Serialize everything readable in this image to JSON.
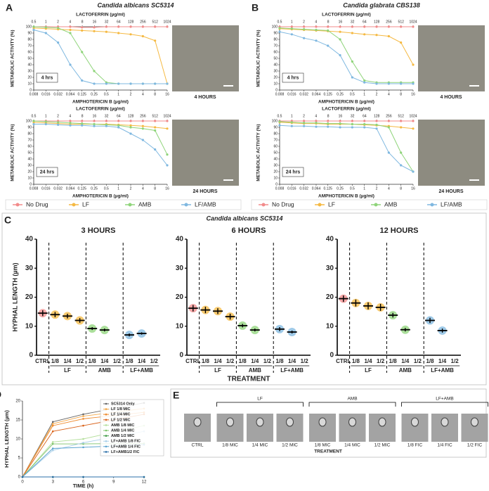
{
  "chart_data": [
    {
      "type": "line",
      "panel": "A",
      "title": "Candida albicans SC5314",
      "x2label": "LACTOFERRIN (µg/ml)",
      "xlabel": "AMPHOTERICIN B (µg/ml)",
      "ylabel": "METABOLIC ACTIVITY (%)",
      "badge": "4 hrs",
      "image_caption": "4 HOURS",
      "xscale": "log",
      "x": [
        0.008,
        0.016,
        0.032,
        0.064,
        0.125,
        0.25,
        0.5,
        1,
        2,
        4,
        8,
        16
      ],
      "xlim": [
        0.008,
        16
      ],
      "xticks": [
        0.008,
        0.016,
        0.032,
        0.064,
        0.125,
        0.25,
        0.5,
        1,
        2,
        4,
        8,
        16
      ],
      "x2lim": [
        0.5,
        1024
      ],
      "x2ticks": [
        0.5,
        1,
        2,
        4,
        8,
        16,
        32,
        64,
        128,
        256,
        512,
        1024
      ],
      "ylim": [
        0,
        100
      ],
      "yticks": [
        0,
        10,
        20,
        30,
        40,
        50,
        60,
        70,
        80,
        90,
        100
      ],
      "series": [
        {
          "color": "#f28b8b",
          "values": [
            100,
            100,
            100,
            100,
            99,
            99,
            100,
            100,
            100,
            100,
            100,
            100
          ]
        },
        {
          "color": "#f5b942",
          "values": [
            98,
            97,
            96,
            95,
            94,
            93,
            92,
            90,
            88,
            85,
            78,
            10
          ]
        },
        {
          "color": "#8fd47a",
          "values": [
            100,
            99,
            98,
            90,
            60,
            30,
            12,
            10,
            10,
            10,
            10,
            10
          ]
        },
        {
          "color": "#7fb8e0",
          "values": [
            95,
            90,
            75,
            40,
            15,
            10,
            10,
            10,
            10,
            10,
            10,
            10
          ]
        }
      ]
    },
    {
      "type": "line",
      "x2label": "LACTOFERRIN (µg/ml)",
      "xlabel": "AMPHOTERICIN B (µg/ml)",
      "ylabel": "METABOLIC ACTIVITY (%)",
      "badge": "24 hrs",
      "image_caption": "24 HOURS",
      "xscale": "log",
      "x": [
        0.008,
        0.016,
        0.032,
        0.064,
        0.125,
        0.25,
        0.5,
        1,
        2,
        4,
        8,
        16
      ],
      "xlim": [
        0.008,
        16
      ],
      "xticks": [
        0.008,
        0.016,
        0.032,
        0.064,
        0.125,
        0.25,
        0.5,
        1,
        2,
        4,
        8,
        16
      ],
      "x2lim": [
        0.5,
        1024
      ],
      "x2ticks": [
        0.5,
        1,
        2,
        4,
        8,
        16,
        32,
        64,
        128,
        256,
        512,
        1024
      ],
      "ylim": [
        0,
        100
      ],
      "yticks": [
        0,
        10,
        20,
        30,
        40,
        50,
        60,
        70,
        80,
        90,
        100
      ],
      "legend": "bottom",
      "series": [
        {
          "name": "No Drug",
          "color": "#f28b8b",
          "values": [
            100,
            100,
            100,
            100,
            100,
            100,
            100,
            100,
            100,
            100,
            100,
            100
          ]
        },
        {
          "name": "LF",
          "color": "#f5b942",
          "values": [
            98,
            97,
            96,
            95,
            95,
            95,
            95,
            94,
            93,
            92,
            90,
            88
          ]
        },
        {
          "name": "AMB",
          "color": "#8fd47a",
          "values": [
            100,
            99,
            98,
            97,
            96,
            95,
            94,
            93,
            90,
            88,
            85,
            47
          ]
        },
        {
          "name": "LF/AMB",
          "color": "#7fb8e0",
          "values": [
            95,
            95,
            94,
            93,
            93,
            92,
            92,
            90,
            80,
            70,
            55,
            30
          ]
        }
      ]
    },
    {
      "type": "line",
      "panel": "B",
      "title": "Candida glabrata CBS138",
      "x2label": "LACTOFERRIN (µg/ml)",
      "xlabel": "AMPHOTERICIN B (µg/ml)",
      "ylabel": "METABOLIC ACTIVITY (%)",
      "badge": "4 hrs",
      "image_caption": "4 HOURS",
      "xscale": "log",
      "x": [
        0.008,
        0.016,
        0.032,
        0.064,
        0.125,
        0.25,
        0.5,
        1,
        2,
        4,
        8,
        16
      ],
      "xlim": [
        0.008,
        16
      ],
      "xticks": [
        0.008,
        0.016,
        0.032,
        0.064,
        0.125,
        0.25,
        0.5,
        1,
        2,
        4,
        8,
        16
      ],
      "x2lim": [
        0.5,
        1024
      ],
      "x2ticks": [
        0.5,
        1,
        2,
        4,
        8,
        16,
        32,
        64,
        128,
        256,
        512,
        1024
      ],
      "ylim": [
        0,
        100
      ],
      "yticks": [
        0,
        10,
        20,
        30,
        40,
        50,
        60,
        70,
        80,
        90,
        100
      ],
      "series": [
        {
          "color": "#f28b8b",
          "values": [
            100,
            100,
            100,
            100,
            100,
            100,
            100,
            100,
            100,
            100,
            100,
            100
          ]
        },
        {
          "color": "#f5b942",
          "values": [
            97,
            96,
            95,
            94,
            93,
            92,
            90,
            88,
            87,
            85,
            75,
            40
          ]
        },
        {
          "color": "#8fd47a",
          "values": [
            98,
            97,
            96,
            95,
            94,
            80,
            45,
            15,
            12,
            12,
            12,
            12
          ]
        },
        {
          "color": "#7fb8e0",
          "values": [
            92,
            88,
            82,
            78,
            70,
            55,
            20,
            12,
            10,
            10,
            10,
            10
          ]
        }
      ]
    },
    {
      "type": "line",
      "x2label": "LACTOFERRIN (µg/ml)",
      "xlabel": "AMPHOTERICIN B (µg/ml)",
      "ylabel": "METABOLIC ACTIVITY (%)",
      "badge": "24 hrs",
      "image_caption": "24 HOURS",
      "xscale": "log",
      "x": [
        0.008,
        0.016,
        0.032,
        0.064,
        0.125,
        0.25,
        0.5,
        1,
        2,
        4,
        8,
        16
      ],
      "xlim": [
        0.008,
        16
      ],
      "xticks": [
        0.008,
        0.016,
        0.032,
        0.064,
        0.125,
        0.25,
        0.5,
        1,
        2,
        4,
        8,
        16
      ],
      "x2lim": [
        0.5,
        1024
      ],
      "x2ticks": [
        0.5,
        1,
        2,
        4,
        8,
        16,
        32,
        64,
        128,
        256,
        512,
        1024
      ],
      "ylim": [
        0,
        100
      ],
      "yticks": [
        0,
        10,
        20,
        30,
        40,
        50,
        60,
        70,
        80,
        90,
        100
      ],
      "legend": "bottom",
      "series": [
        {
          "name": "No Drug",
          "color": "#f28b8b",
          "values": [
            100,
            100,
            100,
            100,
            100,
            100,
            100,
            100,
            100,
            100,
            100,
            100
          ]
        },
        {
          "name": "LF",
          "color": "#f5b942",
          "values": [
            98,
            97,
            96,
            96,
            95,
            95,
            95,
            94,
            93,
            92,
            90,
            88
          ]
        },
        {
          "name": "AMB",
          "color": "#8fd47a",
          "values": [
            99,
            98,
            97,
            97,
            96,
            96,
            95,
            95,
            94,
            90,
            50,
            20
          ]
        },
        {
          "name": "LF/AMB",
          "color": "#7fb8e0",
          "values": [
            93,
            92,
            92,
            91,
            91,
            90,
            90,
            90,
            88,
            50,
            30,
            20
          ]
        }
      ]
    },
    {
      "type": "dot",
      "panel": "C",
      "suptitle": "Candida albicans SC5314",
      "title": "3 HOURS",
      "ylabel": "HYPHAL LENGTH (µm)",
      "categories": [
        "CTRL",
        "1/8",
        "1/4",
        "1/2",
        "1/8",
        "1/4",
        "1/2",
        "1/8",
        "1/4",
        "1/2"
      ],
      "groups": [
        null,
        "LF",
        "LF",
        "LF",
        "AMB",
        "AMB",
        "AMB",
        "LF+AMB",
        "LF+AMB",
        "LF+AMB"
      ],
      "colors": [
        "#f28b8b",
        "#f5b942",
        "#f5b942",
        "#f5b942",
        "#8fd47a",
        "#8fd47a",
        "#8fd47a",
        "#7fb8e0",
        "#7fb8e0",
        "#7fb8e0"
      ],
      "values": [
        14.5,
        14,
        13.5,
        12,
        9.2,
        8.7,
        null,
        7,
        7.5,
        null
      ],
      "errors": [
        1,
        0.9,
        0.8,
        0.8,
        0.5,
        0.5,
        null,
        0.5,
        0.4,
        null
      ],
      "ylim": [
        0,
        40
      ],
      "yticks": [
        0,
        10,
        20,
        30,
        40
      ]
    },
    {
      "type": "dot",
      "title": "6 HOURS",
      "xlabel": "TREATMENT",
      "categories": [
        "CTRL",
        "1/8",
        "1/4",
        "1/2",
        "1/8",
        "1/4",
        "1/2",
        "1/8",
        "1/4",
        "1/2"
      ],
      "groups": [
        null,
        "LF",
        "LF",
        "LF",
        "AMB",
        "AMB",
        "AMB",
        "LF+AMB",
        "LF+AMB",
        "LF+AMB"
      ],
      "colors": [
        "#f28b8b",
        "#f5b942",
        "#f5b942",
        "#f5b942",
        "#8fd47a",
        "#8fd47a",
        "#8fd47a",
        "#7fb8e0",
        "#7fb8e0",
        "#7fb8e0"
      ],
      "values": [
        16.2,
        15.6,
        15.2,
        13.3,
        10.2,
        8.7,
        null,
        9,
        8,
        null
      ],
      "errors": [
        1.1,
        1.1,
        1,
        1,
        0.6,
        0.5,
        null,
        0.7,
        0.5,
        null
      ],
      "ylim": [
        0,
        40
      ],
      "yticks": [
        0,
        10,
        20,
        30,
        40
      ]
    },
    {
      "type": "dot",
      "title": "12 HOURS",
      "categories": [
        "CTRL",
        "1/8",
        "1/4",
        "1/2",
        "1/8",
        "1/4",
        "1/2",
        "1/8",
        "1/4",
        "1/2"
      ],
      "groups": [
        null,
        "LF",
        "LF",
        "LF",
        "AMB",
        "AMB",
        "AMB",
        "LF+AMB",
        "LF+AMB",
        "LF+AMB"
      ],
      "colors": [
        "#f28b8b",
        "#f5b942",
        "#f5b942",
        "#f5b942",
        "#8fd47a",
        "#8fd47a",
        "#8fd47a",
        "#7fb8e0",
        "#7fb8e0",
        "#7fb8e0"
      ],
      "values": [
        19.5,
        18,
        17,
        16.5,
        13.8,
        8.8,
        null,
        12,
        8.5,
        null
      ],
      "errors": [
        1.1,
        1.2,
        1.2,
        1.2,
        0.8,
        0.6,
        null,
        0.9,
        0.7,
        null
      ],
      "ylim": [
        0,
        40
      ],
      "yticks": [
        0,
        10,
        20,
        30,
        40
      ]
    },
    {
      "type": "line",
      "panel": "D",
      "xlabel": "TIME (h)",
      "ylabel": "HYPHAL LENGTH (µm)",
      "legend": "upper right",
      "x": [
        0,
        3,
        6,
        12
      ],
      "xlim": [
        0,
        12
      ],
      "xticks": [
        0,
        3,
        6,
        9,
        12
      ],
      "ylim": [
        0,
        20
      ],
      "yticks": [
        0,
        5,
        10,
        15,
        20
      ],
      "series": [
        {
          "name": "SC5314 Only",
          "color": "#666666",
          "values": [
            0,
            14.5,
            16.5,
            19.5
          ]
        },
        {
          "name": "LF 1/8 MIC",
          "color": "#f5a94a",
          "values": [
            0,
            14,
            16,
            18
          ]
        },
        {
          "name": "LF 1/4 MIC",
          "color": "#ee8a2e",
          "values": [
            0,
            13.5,
            15.3,
            17
          ]
        },
        {
          "name": "LF 1/2 MIC",
          "color": "#d9621a",
          "values": [
            0,
            12,
            13.5,
            16.5
          ]
        },
        {
          "name": "AMB 1/8 MIC",
          "color": "#b5df9d",
          "values": [
            0,
            9.2,
            10,
            13.5
          ]
        },
        {
          "name": "AMB 1/4 MIC",
          "color": "#7cc36a",
          "values": [
            0,
            8.7,
            8.7,
            8.8
          ]
        },
        {
          "name": "AMB 1/2 MIC",
          "color": "#3e9a44",
          "values": [
            0,
            0,
            0,
            0
          ]
        },
        {
          "name": "LF+AMB 1/8 FIC",
          "color": "#a9cfe8",
          "values": [
            0,
            7,
            9,
            12
          ]
        },
        {
          "name": "LF+AMB 1/4 FIC",
          "color": "#5aa3cf",
          "values": [
            0,
            7.5,
            7.8,
            8.5
          ]
        },
        {
          "name": "LF+AMB1/2 FIC",
          "color": "#2b6fa8",
          "values": [
            0,
            0,
            0,
            0
          ]
        }
      ]
    }
  ],
  "image_panel": {
    "panel": "E",
    "groups": [
      "LF",
      "AMB",
      "LF+AMB"
    ],
    "labels": [
      "CTRL",
      "1/8 MIC",
      "1/4 MIC",
      "1/2 MIC",
      "1/8 MIC",
      "1/4 MIC",
      "1/2 MIC",
      "1/8 FIC",
      "1/4 FIC",
      "1/2 FIC"
    ],
    "xlabel": "TREATMENT"
  }
}
